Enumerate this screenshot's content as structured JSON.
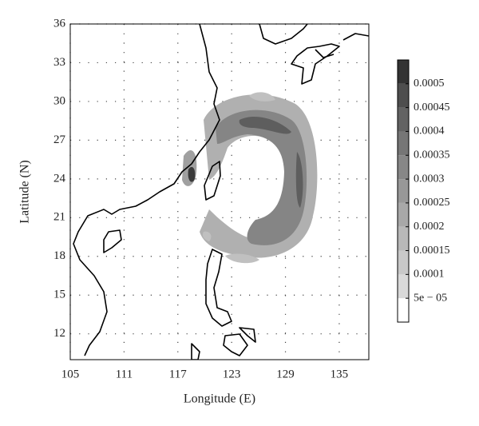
{
  "chart_data": {
    "type": "contour-map",
    "xlabel": "Longitude (E)",
    "ylabel": "Latitude (N)",
    "xlim": [
      105,
      138.3
    ],
    "ylim": [
      10,
      36
    ],
    "xticks": [
      105,
      111,
      117,
      123,
      129,
      135
    ],
    "yticks": [
      12,
      15,
      18,
      21,
      24,
      27,
      30,
      33,
      36
    ],
    "grid": true,
    "colorbar": {
      "clim": [
        0,
        0.00055
      ],
      "colors": [
        "#ffffff",
        "#d9d9d9",
        "#c8c8c8",
        "#b8b8b8",
        "#a8a8a8",
        "#989898",
        "#878787",
        "#767676",
        "#636363",
        "#4e4e4e",
        "#333333"
      ],
      "ticks": [
        {
          "value": 5e-05,
          "label": "5e − 05"
        },
        0.0001,
        0.00015,
        0.0002,
        0.00025,
        0.0003,
        0.00035,
        0.0004,
        0.00045,
        0.0005
      ]
    }
  }
}
